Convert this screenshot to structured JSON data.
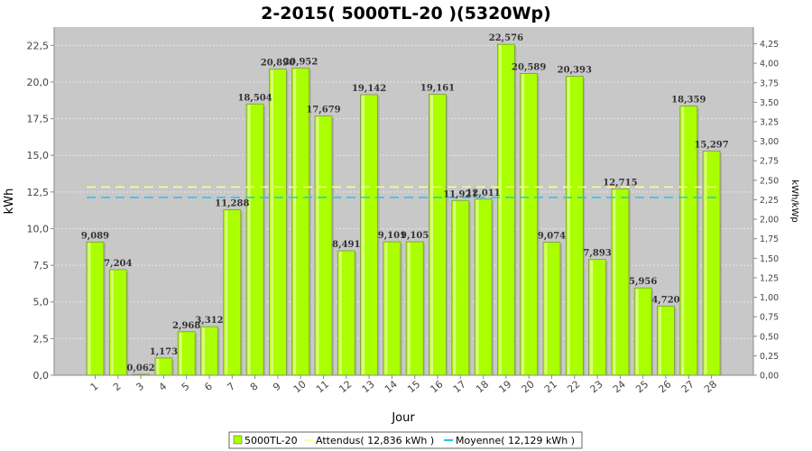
{
  "chart_data": {
    "type": "bar",
    "title": "2-2015( 5000TL-20 )(5320Wp)",
    "xlabel": "Jour",
    "ylabel": "kWh",
    "ylabel_right": "kWh/kWp",
    "ylim": [
      0,
      23.75
    ],
    "ylim_right": [
      0,
      4.4643
    ],
    "yticks": [
      "0,0",
      "2,5",
      "5,0",
      "7,5",
      "10,0",
      "12,5",
      "15,0",
      "17,5",
      "20,0",
      "22,5"
    ],
    "yticks_right": [
      "0,00",
      "0,25",
      "0,50",
      "0,75",
      "1,00",
      "1,25",
      "1,50",
      "1,75",
      "2,00",
      "2,25",
      "2,50",
      "2,75",
      "3,00",
      "3,25",
      "3,50",
      "3,75",
      "4,00",
      "4,25"
    ],
    "categories": [
      "1",
      "2",
      "3",
      "4",
      "5",
      "6",
      "7",
      "8",
      "9",
      "10",
      "11",
      "12",
      "13",
      "14",
      "15",
      "16",
      "17",
      "18",
      "19",
      "20",
      "21",
      "22",
      "23",
      "24",
      "25",
      "26",
      "27",
      "28"
    ],
    "series": [
      {
        "name": "5000TL-20",
        "values": [
          9.089,
          7.204,
          0.062,
          1.173,
          2.968,
          3.312,
          11.288,
          18.504,
          20.89,
          20.952,
          17.679,
          8.491,
          19.142,
          9.101,
          9.105,
          19.161,
          11.921,
          12.011,
          22.576,
          20.589,
          9.074,
          20.393,
          7.893,
          12.715,
          5.956,
          4.72,
          18.359,
          15.297
        ],
        "labels": [
          "9,089",
          "7,204",
          "0,062",
          "1,173",
          "2,968",
          "3,312",
          "11,288",
          "18,504",
          "20,890",
          "20,952",
          "17,679",
          "8,491",
          "19,142",
          "9,101",
          "9,105",
          "19,161",
          "11,921",
          "12,011",
          "22,576",
          "20,589",
          "9,074",
          "20,393",
          "7,893",
          "12,715",
          "5,956",
          "4,720",
          "18,359",
          "15,297"
        ],
        "color": "#aaff00"
      }
    ],
    "lines": [
      {
        "name": "Attendus",
        "value": 12.836,
        "color": "#ffff88"
      },
      {
        "name": "Moyenne",
        "value": 12.129,
        "color": "#22c4ee"
      }
    ],
    "legend": [
      "5000TL-20",
      "Attendus( 12,836 kWh )",
      "Moyenne( 12,129 kWh )"
    ],
    "legend_position": "bottom",
    "grid": true,
    "plot_background": "#c8c8c8"
  }
}
